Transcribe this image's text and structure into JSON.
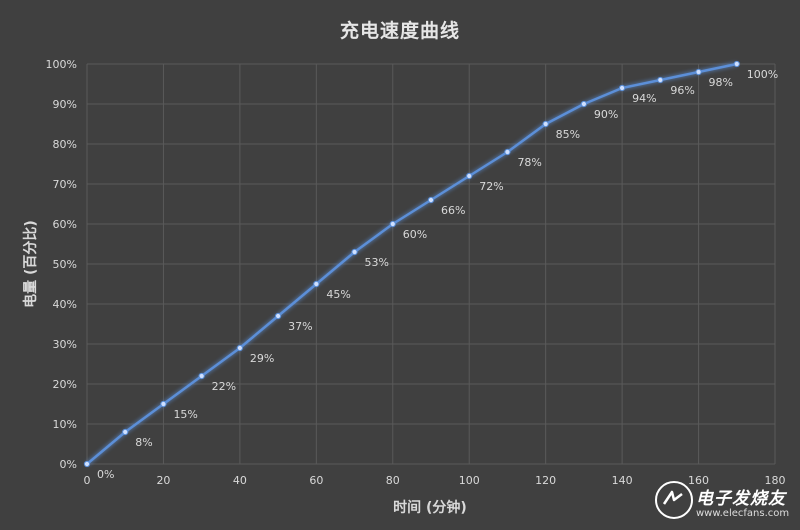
{
  "chart_data": {
    "type": "line",
    "title": "充电速度曲线",
    "xlabel": "时间 (分钟)",
    "ylabel": "电量 (百分比)",
    "xlim": [
      0,
      180
    ],
    "ylim": [
      0,
      100
    ],
    "x_ticks": [
      0,
      20,
      40,
      60,
      80,
      100,
      120,
      140,
      160,
      180
    ],
    "y_ticks": [
      "0%",
      "10%",
      "20%",
      "30%",
      "40%",
      "50%",
      "60%",
      "70%",
      "80%",
      "90%",
      "100%"
    ],
    "grid": true,
    "series": [
      {
        "x": [
          0,
          10,
          20,
          30,
          40,
          50,
          60,
          70,
          80,
          90,
          100,
          110,
          120,
          130,
          140,
          150,
          160,
          170
        ],
        "values": [
          0,
          8,
          15,
          22,
          29,
          37,
          45,
          53,
          60,
          66,
          72,
          78,
          85,
          90,
          94,
          96,
          98,
          100
        ],
        "labels": [
          "0%",
          "8%",
          "15%",
          "22%",
          "29%",
          "37%",
          "45%",
          "53%",
          "60%",
          "66%",
          "72%",
          "78%",
          "85%",
          "90%",
          "94%",
          "96%",
          "98%",
          "100%"
        ],
        "color": "#5b8fd8"
      }
    ]
  },
  "colors": {
    "background": "#404040",
    "grid": "#5a5a5a",
    "line": "#5b8fd8",
    "text": "#d9d9d9"
  },
  "watermark": {
    "text": "电子发烧友",
    "url": "www.elecfans.com"
  }
}
